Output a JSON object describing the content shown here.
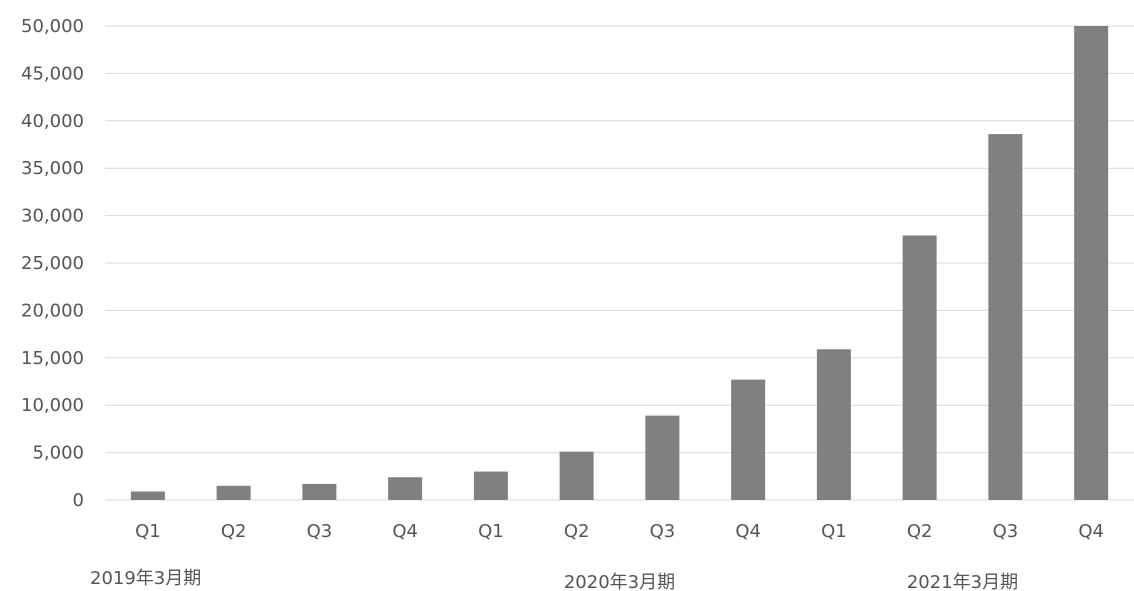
{
  "chart_data": {
    "type": "bar",
    "categories": [
      "Q1",
      "Q2",
      "Q3",
      "Q4",
      "Q1",
      "Q2",
      "Q3",
      "Q4",
      "Q1",
      "Q2",
      "Q3",
      "Q4"
    ],
    "values": [
      900,
      1500,
      1700,
      2400,
      3000,
      5100,
      8900,
      12700,
      15900,
      27900,
      38600,
      50000
    ],
    "groups": [
      {
        "label": "2019年3月期",
        "start": 0,
        "end": 3
      },
      {
        "label": "2020年3月期",
        "start": 4,
        "end": 7
      },
      {
        "label": "2021年3月期",
        "start": 8,
        "end": 11
      }
    ],
    "yticks": [
      "0",
      "5,000",
      "10,000",
      "15,000",
      "20,000",
      "25,000",
      "30,000",
      "35,000",
      "40,000",
      "45,000",
      "50,000"
    ],
    "ylim": [
      0,
      50000
    ],
    "grid": true,
    "bar_color": "#808080",
    "grid_color": "#d9d9d9",
    "title": "",
    "xlabel": "",
    "ylabel": ""
  }
}
